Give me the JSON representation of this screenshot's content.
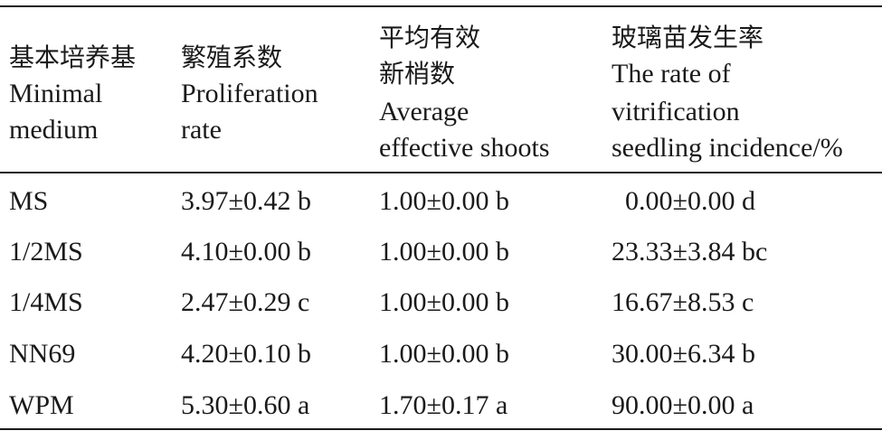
{
  "table": {
    "headers": [
      {
        "lines": [
          "基本培养基",
          "Minimal",
          "medium"
        ]
      },
      {
        "lines": [
          "繁殖系数",
          "Proliferation",
          "rate"
        ]
      },
      {
        "lines": [
          "平均有效",
          "新梢数",
          "Average",
          "effective shoots"
        ]
      },
      {
        "lines": [
          "玻璃苗发生率",
          "The rate of",
          "vitrification",
          "seedling incidence/%"
        ]
      }
    ],
    "rows": [
      [
        "MS",
        "3.97±0.42 b",
        "1.00±0.00 b",
        "0.00±0.00 d"
      ],
      [
        "1/2MS",
        "4.10±0.00 b",
        "1.00±0.00 b",
        "23.33±3.84 bc"
      ],
      [
        "1/4MS",
        "2.47±0.29 c",
        "1.00±0.00 b",
        "16.67±8.53 c"
      ],
      [
        "NN69",
        "4.20±0.10 b",
        "1.00±0.00 b",
        "30.00±6.34 b"
      ],
      [
        "WPM",
        "5.30±0.60 a",
        "1.70±0.17 a",
        "90.00±0.00 a"
      ]
    ]
  }
}
